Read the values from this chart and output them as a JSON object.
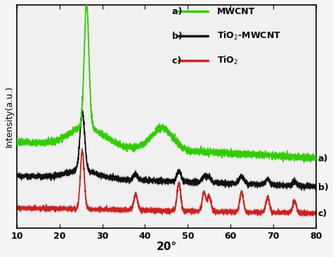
{
  "xlim": [
    10,
    80
  ],
  "xlabel": "20°",
  "ylabel": "Intensity(a.u.)",
  "xticks": [
    10,
    20,
    30,
    40,
    50,
    60,
    70,
    80
  ],
  "background_color": "#f5f5f5",
  "plot_bg": "#f0f0f0",
  "mwcnt_color": "#33cc00",
  "tio2mwcnt_color": "#111111",
  "tio2_color": "#cc2222",
  "label_a": "a)",
  "label_b": "b)",
  "label_c": "c)",
  "legend_entries": [
    {
      "prefix": "a) ",
      "text": "MWCNT",
      "color": "#33cc00"
    },
    {
      "prefix": "b) ",
      "text": "TiO$_2$-MWCNT",
      "color": "#111111"
    },
    {
      "prefix": "c) ",
      "text": "TiO$_2$",
      "color": "#cc2222"
    }
  ],
  "noise_seed": 7,
  "figsize": [
    4.74,
    3.65
  ],
  "dpi": 100
}
